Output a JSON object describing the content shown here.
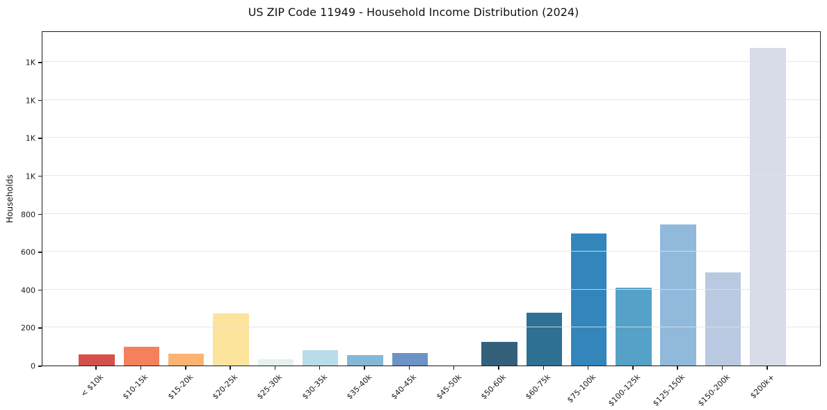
{
  "chart_data": {
    "type": "bar",
    "title": "US ZIP Code 11949 - Household Income Distribution (2024)",
    "xlabel": "",
    "ylabel": "Households",
    "ylim": [
      0,
      1765
    ],
    "grid": "horizontal-light-gray-over-bars",
    "legend": "none",
    "yticks": [
      {
        "value": 0,
        "label": "0"
      },
      {
        "value": 200,
        "label": "200"
      },
      {
        "value": 400,
        "label": "400"
      },
      {
        "value": 600,
        "label": "600"
      },
      {
        "value": 800,
        "label": "800"
      },
      {
        "value": 1000,
        "label": "1K"
      },
      {
        "value": 1200,
        "label": "1K"
      },
      {
        "value": 1400,
        "label": "1K"
      },
      {
        "value": 1600,
        "label": "1K"
      }
    ],
    "categories": [
      "< $10k",
      "$10-15k",
      "$15-20k",
      "$20-25k",
      "$25-30k",
      "$30-35k",
      "$35-40k",
      "$40-45k",
      "$45-50k",
      "$50-60k",
      "$60-75k",
      "$75-100k",
      "$100-125k",
      "$125-150k",
      "$150-200k",
      "$200k+"
    ],
    "values": [
      60,
      100,
      62,
      275,
      32,
      80,
      55,
      65,
      0,
      125,
      280,
      695,
      410,
      745,
      490,
      1675
    ],
    "bar_colors": [
      "#d5504b",
      "#f4815c",
      "#fcb271",
      "#fce49c",
      "#e4f1ee",
      "#b8dcea",
      "#85b7d8",
      "#6b93c5",
      "#3f6d92",
      "#34607c",
      "#2f7095",
      "#3386bb",
      "#55a1c8",
      "#90b9dc",
      "#b9c9e1",
      "#d8dbe8"
    ],
    "colors": {
      "axis_spine": "#1a1a1a",
      "gridline": "#e2e2e2",
      "tick_text": "#1a1a1a",
      "title_text": "#111111",
      "background": "#ffffff"
    }
  }
}
